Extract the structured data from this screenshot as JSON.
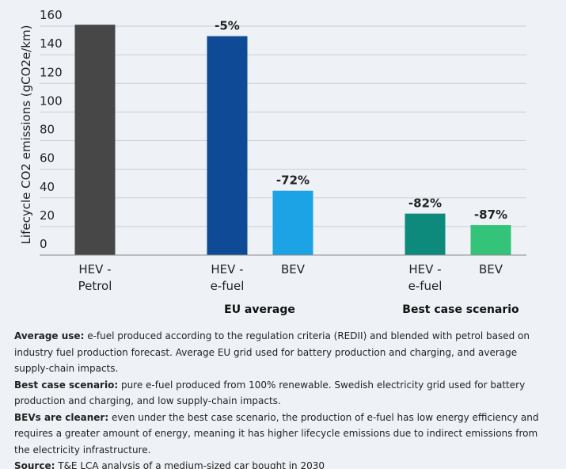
{
  "chart_data": {
    "type": "bar",
    "ylabel": "Lifecycle CO2 emissions (gCO2e/km)",
    "categories": [
      "HEV -\nPetrol",
      "HEV -\ne-fuel",
      "BEV",
      "HEV -\ne-fuel",
      "BEV"
    ],
    "values": [
      161,
      153,
      45,
      29,
      21
    ],
    "colors": [
      "#474747",
      "#0e4a95",
      "#1ba3e6",
      "#0d8a7c",
      "#33c479"
    ],
    "annotations": [
      "-5%",
      "-72%",
      "-82%",
      "-87%"
    ],
    "groups": [
      "EU average",
      "Best case scenario"
    ],
    "ylim": [
      0,
      160
    ],
    "yticks": [
      0,
      20,
      40,
      60,
      80,
      100,
      120,
      140,
      160
    ],
    "grid": true
  },
  "notes": [
    {
      "label": "Average use:",
      "text": "e-fuel produced according to the regulation criteria (REDII) and blended with petrol based on industry fuel production forecast. Average EU grid used for battery production and charging, and average supply-chain impacts."
    },
    {
      "label": "Best case scenario:",
      "text": "pure e-fuel produced from 100% renewable. Swedish electricity grid used for battery production and charging, and low supply-chain impacts."
    },
    {
      "label": "BEVs are cleaner:",
      "text": "even under the best case scenario, the production of e-fuel has low energy efficiency and requires a greater amount of energy, meaning it has higher lifecycle emissions due to indirect emissions from the electricity infrastructure."
    },
    {
      "label": "Source:",
      "text": "T&E LCA analysis of a medium-sized car bought in 2030"
    }
  ]
}
